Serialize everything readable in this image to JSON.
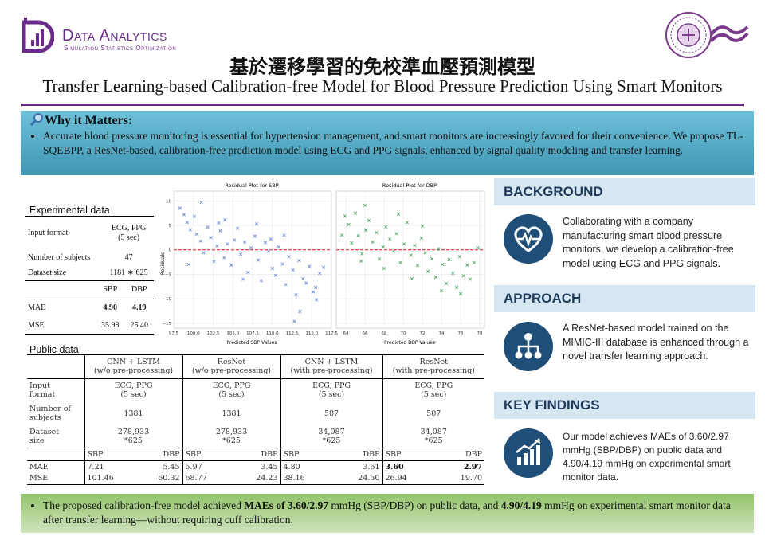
{
  "header": {
    "brand": "Data Analytics",
    "brand_sub": "Simulation Statistics Optimization",
    "title_zh": "基於遷移學習的免校準血壓預測模型",
    "title_en": "Transfer Learning-based Calibration-free Model for Blood Pressure Prediction Using Smart Monitors"
  },
  "why": {
    "icon": "magnifier-icon",
    "heading": "Why it Matters",
    "text": "Accurate blood pressure monitoring is essential for hypertension management, and smart monitors are increasingly favored for their convenience. We propose TL-SQEBPP, a ResNet-based, calibration-free prediction model using ECG and PPG signals, enhanced by signal quality modeling and transfer learning."
  },
  "experimental": {
    "label": "Experimental data",
    "input_format_label": "Input format",
    "input_format_value_1": "ECG, PPG",
    "input_format_value_2": "(5 sec)",
    "subjects_label": "Number of subjects",
    "subjects_value": "47",
    "size_label": "Dataset size",
    "size_value": "1181 ∗ 625",
    "metric_headers": [
      "SBP",
      "DBP"
    ],
    "mae_label": "MAE",
    "mae": [
      "4.90",
      "4.19"
    ],
    "mse_label": "MSE",
    "mse": [
      "35.98",
      "25.40"
    ]
  },
  "public": {
    "label": "Public data",
    "models": [
      {
        "name": "CNN + LSTM",
        "note": "(w/o pre-processing)",
        "format_1": "ECG, PPG",
        "format_2": "(5 sec)",
        "subjects": "1381",
        "size_1": "278,933",
        "size_2": "*625",
        "mae": [
          "7.21",
          "5.45"
        ],
        "mse": [
          "101.46",
          "60.32"
        ]
      },
      {
        "name": "ResNet",
        "note": "(w/o pre-processing)",
        "format_1": "ECG, PPG",
        "format_2": "(5 sec)",
        "subjects": "1381",
        "size_1": "278,933",
        "size_2": "*625",
        "mae": [
          "5.97",
          "3.45"
        ],
        "mse": [
          "68.77",
          "24.23"
        ]
      },
      {
        "name": "CNN + LSTM",
        "note": "(with pre-processing)",
        "format_1": "ECG, PPG",
        "format_2": "(5 sec)",
        "subjects": "507",
        "size_1": "34,087",
        "size_2": "*625",
        "mae": [
          "4.80",
          "3.61"
        ],
        "mse": [
          "38.16",
          "24.50"
        ]
      },
      {
        "name": "ResNet",
        "note": "(with pre-processing)",
        "format_1": "ECG, PPG",
        "format_2": "(5 sec)",
        "subjects": "507",
        "size_1": "34,087",
        "size_2": "*625",
        "mae": [
          "3.60",
          "2.97"
        ],
        "mse": [
          "26.94",
          "19.70"
        ]
      }
    ],
    "row_labels": {
      "input_1": "Input",
      "input_2": "format",
      "subjects_1": "Number of",
      "subjects_2": "subjects",
      "size_1": "Dataset",
      "size_2": "size",
      "mae": "MAE",
      "mse": "MSE"
    },
    "metric_headers": [
      "SBP",
      "DBP"
    ]
  },
  "chart_data": [
    {
      "type": "scatter",
      "title": "Residual Plot for SBP",
      "xlabel": "Predicted SBP Values",
      "ylabel": "Residuals",
      "xlim": [
        97.5,
        117.5
      ],
      "ylim": [
        -16,
        12
      ],
      "xticks": [
        "97.5",
        "100.0",
        "102.5",
        "105.0",
        "107.5",
        "110.0",
        "112.5",
        "115.0",
        "117.5"
      ],
      "yticks": [
        "10",
        "5",
        "0",
        "−5",
        "−10",
        "−15"
      ],
      "reference_line": 0,
      "color": "#5a7fd6",
      "marker": "x",
      "points": [
        [
          98.3,
          8.5
        ],
        [
          98.8,
          7.2
        ],
        [
          99.2,
          5.6
        ],
        [
          99.6,
          4.1
        ],
        [
          100.1,
          6.8
        ],
        [
          100.4,
          3.2
        ],
        [
          100.9,
          1.8
        ],
        [
          101.3,
          -0.6
        ],
        [
          101.8,
          4.6
        ],
        [
          102.2,
          2.5
        ],
        [
          102.6,
          -2.4
        ],
        [
          103.0,
          0.8
        ],
        [
          103.4,
          3.9
        ],
        [
          103.9,
          -1.6
        ],
        [
          104.3,
          1.2
        ],
        [
          104.8,
          -3.1
        ],
        [
          105.2,
          2.0
        ],
        [
          105.6,
          4.4
        ],
        [
          106.0,
          -0.9
        ],
        [
          106.5,
          1.6
        ],
        [
          106.9,
          -4.6
        ],
        [
          107.3,
          0.4
        ],
        [
          107.8,
          2.8
        ],
        [
          108.2,
          -2.1
        ],
        [
          108.6,
          -6.3
        ],
        [
          109.1,
          1.5
        ],
        [
          109.5,
          -0.3
        ],
        [
          110.0,
          -3.8
        ],
        [
          110.4,
          -5.2
        ],
        [
          110.8,
          0.6
        ],
        [
          111.3,
          -2.9
        ],
        [
          111.7,
          -7.1
        ],
        [
          112.1,
          -1.4
        ],
        [
          112.6,
          -4.1
        ],
        [
          113.0,
          -9.2
        ],
        [
          113.4,
          -2.2
        ],
        [
          113.9,
          -5.9
        ],
        [
          114.3,
          -6.8
        ],
        [
          114.7,
          -3.4
        ],
        [
          115.2,
          -8.6
        ],
        [
          115.6,
          -10.2
        ],
        [
          116.0,
          -4.8
        ],
        [
          101.0,
          9.7
        ],
        [
          104.0,
          6.1
        ],
        [
          108.0,
          5.3
        ],
        [
          111.5,
          3.0
        ],
        [
          113.5,
          -12.6
        ],
        [
          115.5,
          -7.7
        ],
        [
          99.4,
          -3.0
        ],
        [
          106.3,
          -6.0
        ],
        [
          112.8,
          -14.6
        ],
        [
          103.2,
          5.5
        ],
        [
          109.8,
          2.2
        ],
        [
          116.5,
          -3.6
        ]
      ]
    },
    {
      "type": "scatter",
      "title": "Residual Plot for DBP",
      "xlabel": "Predicted DBP Values",
      "xlim": [
        63,
        78.5
      ],
      "xticks": [
        "64",
        "66",
        "68",
        "70",
        "72",
        "74",
        "76",
        "78"
      ],
      "reference_line": 0,
      "color": "#3f9d5a",
      "marker": "x",
      "points": [
        [
          63.6,
          3.0
        ],
        [
          63.9,
          6.9
        ],
        [
          64.3,
          5.2
        ],
        [
          64.6,
          1.4
        ],
        [
          65.0,
          7.5
        ],
        [
          65.3,
          2.9
        ],
        [
          65.7,
          -0.8
        ],
        [
          66.1,
          4.0
        ],
        [
          66.4,
          6.0
        ],
        [
          66.8,
          1.6
        ],
        [
          67.2,
          3.5
        ],
        [
          67.5,
          -1.9
        ],
        [
          67.9,
          0.6
        ],
        [
          68.2,
          4.7
        ],
        [
          68.6,
          2.2
        ],
        [
          69.0,
          -0.3
        ],
        [
          69.3,
          3.3
        ],
        [
          69.7,
          -2.6
        ],
        [
          70.1,
          1.2
        ],
        [
          70.4,
          5.6
        ],
        [
          70.8,
          -1.1
        ],
        [
          71.2,
          0.9
        ],
        [
          71.5,
          -3.2
        ],
        [
          71.9,
          2.4
        ],
        [
          72.3,
          -0.6
        ],
        [
          72.6,
          -4.4
        ],
        [
          73.0,
          -1.8
        ],
        [
          73.4,
          -5.6
        ],
        [
          73.7,
          0.2
        ],
        [
          74.1,
          -3.0
        ],
        [
          74.5,
          -6.9
        ],
        [
          74.8,
          -2.0
        ],
        [
          75.2,
          -4.8
        ],
        [
          75.6,
          -7.7
        ],
        [
          75.9,
          -1.4
        ],
        [
          76.3,
          -5.3
        ],
        [
          76.7,
          -3.1
        ],
        [
          77.0,
          -6.0
        ],
        [
          77.4,
          -2.6
        ],
        [
          77.8,
          0.4
        ],
        [
          66.0,
          9.1
        ],
        [
          69.5,
          7.3
        ],
        [
          72.0,
          4.9
        ],
        [
          74.0,
          -8.4
        ],
        [
          76.0,
          -9.0
        ],
        [
          68.0,
          -3.8
        ],
        [
          70.9,
          -5.9
        ],
        [
          65.6,
          -2.3
        ]
      ]
    }
  ],
  "cards": [
    {
      "heading": "BACKGROUND",
      "icon": "heart-pulse-icon",
      "text": "Collaborating with a company manufacturing smart blood pressure monitors, we develop a calibration-free model using ECG and PPG signals."
    },
    {
      "heading": "APPROACH",
      "icon": "network-tree-icon",
      "text": "A ResNet-based model trained on the MIMIC-III database is enhanced through a novel transfer learning approach."
    },
    {
      "heading": "KEY FINDINGS",
      "icon": "growth-chart-icon",
      "text": "Our model achieves MAEs of 3.60/2.97 mmHg (SBP/DBP) on public data and 4.90/4.19 mmHg on experimental smart monitor data."
    }
  ],
  "bottom": {
    "text_1": "The proposed calibration-free model achieved ",
    "bold_1": "MAEs of 3.60/2.97",
    "text_2": " mmHg (SBP/DBP) on public data, and ",
    "bold_2": "4.90/4.19",
    "text_3": " mmHg on experimental smart monitor data after transfer learning—without requiring cuff calibration."
  },
  "colors": {
    "brand": "#6a2a8c",
    "accent": "#1f4f79",
    "why_bg": "#4fa6c2",
    "bottom_bg": "#a6cc85"
  }
}
